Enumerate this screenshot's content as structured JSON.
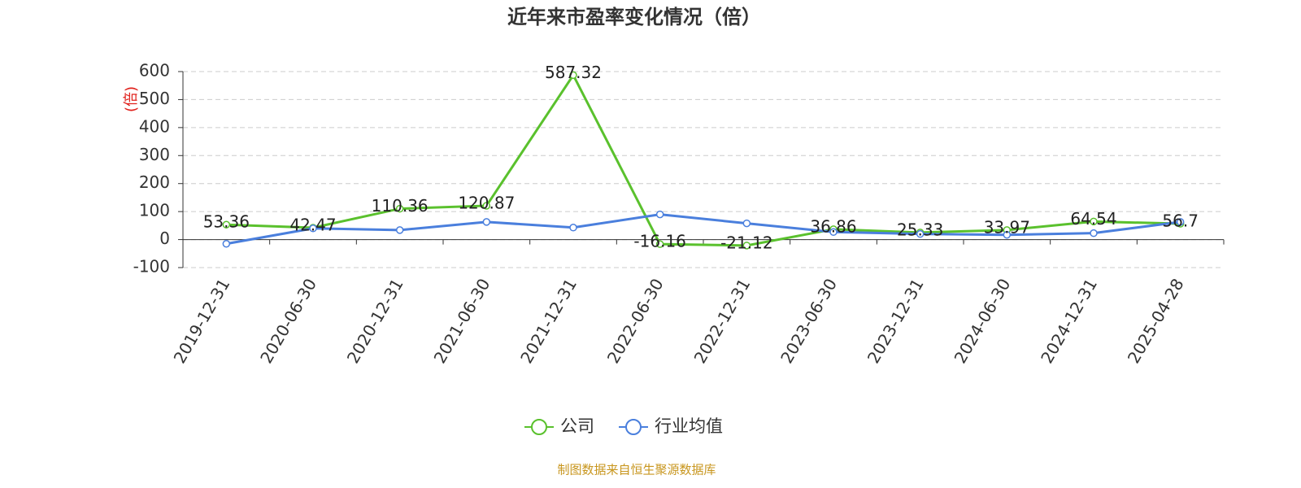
{
  "chart_data": {
    "type": "line",
    "title": "近年来市盈率变化情况（倍）",
    "ylabel": "(倍)",
    "categories": [
      "2019-12-31",
      "2020-06-30",
      "2020-12-31",
      "2021-06-30",
      "2021-12-31",
      "2022-06-30",
      "2022-12-31",
      "2023-06-30",
      "2023-12-31",
      "2024-06-30",
      "2024-12-31",
      "2025-04-28"
    ],
    "series": [
      {
        "name": "公司",
        "color": "#5ac12d",
        "values": [
          53.36,
          42.47,
          110.36,
          120.87,
          587.32,
          -16.16,
          -21.12,
          36.86,
          25.33,
          33.97,
          64.54,
          56.7
        ],
        "show_labels": true
      },
      {
        "name": "行业均值",
        "color": "#4a7fdd",
        "values": [
          -15,
          40,
          34,
          63,
          43,
          90,
          58,
          27,
          20,
          17,
          23,
          63
        ],
        "show_labels": false
      }
    ],
    "ylim": [
      -100,
      600
    ],
    "yticks": [
      -100,
      0,
      100,
      200,
      300,
      400,
      500,
      600
    ],
    "grid": true,
    "source": "制图数据来自恒生聚源数据库"
  }
}
